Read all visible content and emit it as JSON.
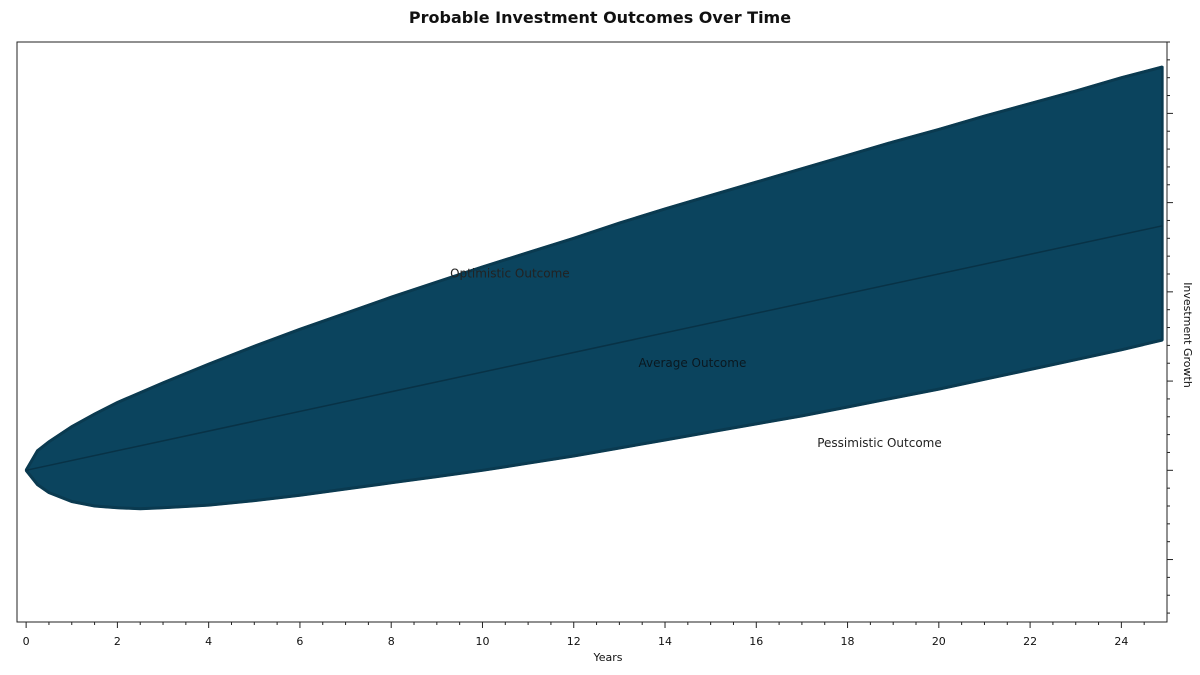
{
  "chart_data": {
    "type": "area",
    "title": "Probable Investment Outcomes Over Time",
    "xlabel": "Years",
    "ylabel": "Investment Growth",
    "xlim": [
      -0.2,
      25.0
    ],
    "ylim": [
      -0.85,
      2.4
    ],
    "x_ticks": [
      0,
      2,
      4,
      6,
      8,
      10,
      12,
      14,
      16,
      18,
      20,
      22,
      24
    ],
    "y_ticks_labeled": false,
    "grid": false,
    "colors": {
      "band": "#0b445e",
      "band_edge": "#0a3a50",
      "mean_line": "#083246"
    },
    "series": [
      {
        "name": "Optimistic Outcome",
        "role": "upper_bound",
        "x": [
          0,
          0.25,
          0.5,
          1,
          1.5,
          2,
          3,
          4,
          5,
          6,
          7,
          8,
          9,
          10,
          11,
          12,
          13,
          14,
          15,
          16,
          17,
          18,
          19,
          20,
          21,
          22,
          23,
          24,
          24.9
        ],
        "values": [
          0,
          0.11,
          0.16,
          0.245,
          0.315,
          0.38,
          0.49,
          0.595,
          0.695,
          0.79,
          0.88,
          0.97,
          1.055,
          1.14,
          1.22,
          1.3,
          1.385,
          1.465,
          1.54,
          1.615,
          1.69,
          1.765,
          1.84,
          1.91,
          1.985,
          2.055,
          2.125,
          2.2,
          2.26
        ]
      },
      {
        "name": "Average Outcome",
        "role": "mean",
        "x": [
          0,
          24.9
        ],
        "values": [
          0,
          1.37
        ]
      },
      {
        "name": "Pessimistic Outcome",
        "role": "lower_bound",
        "x": [
          0,
          0.25,
          0.5,
          1,
          1.5,
          2,
          2.5,
          3,
          4,
          5,
          6,
          7,
          8,
          9,
          10,
          11,
          12,
          13,
          14,
          15,
          16,
          17,
          18,
          19,
          20,
          21,
          22,
          23,
          24,
          24.9
        ],
        "values": [
          0,
          -0.08,
          -0.125,
          -0.175,
          -0.2,
          -0.21,
          -0.215,
          -0.21,
          -0.195,
          -0.17,
          -0.14,
          -0.105,
          -0.07,
          -0.035,
          0.0,
          0.04,
          0.08,
          0.125,
          0.17,
          0.215,
          0.26,
          0.305,
          0.355,
          0.405,
          0.455,
          0.51,
          0.565,
          0.62,
          0.675,
          0.73
        ]
      }
    ],
    "annotations": [
      {
        "text": "Optimistic Outcome",
        "x": 10.6,
        "y": 1.08
      },
      {
        "text": "Average Outcome",
        "x": 14.6,
        "y": 0.58
      },
      {
        "text": "Pessimistic Outcome",
        "x": 18.7,
        "y": 0.13
      }
    ]
  }
}
